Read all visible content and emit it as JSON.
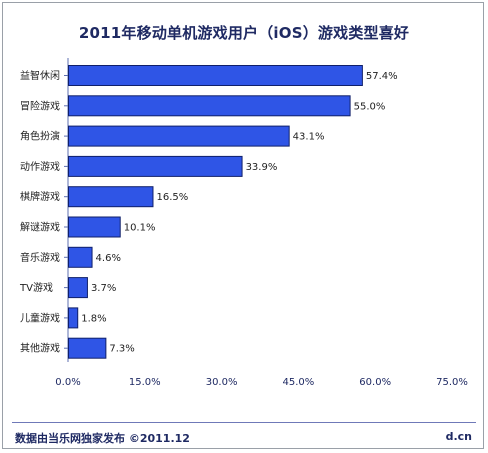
{
  "title": "2011年移动单机游戏用户（iOS）游戏类型喜好",
  "footer": {
    "source": "数据由当乐网独家发布  ©2011.12",
    "site": "d.cn"
  },
  "colors": {
    "bar_fill": "#2f55e6",
    "bar_stroke": "#10206a",
    "title": "#1f2a63",
    "axis": "#5d6fb0"
  },
  "chart_data": {
    "type": "bar",
    "orientation": "horizontal",
    "title": "2011年移动单机游戏用户（iOS）游戏类型喜好",
    "categories": [
      "益智休闲",
      "冒险游戏",
      "角色扮演",
      "动作游戏",
      "棋牌游戏",
      "解谜游戏",
      "音乐游戏",
      "TV游戏",
      "儿童游戏",
      "其他游戏"
    ],
    "values": [
      57.4,
      55.0,
      43.1,
      33.9,
      16.5,
      10.1,
      4.6,
      3.7,
      1.8,
      7.3
    ],
    "value_labels": [
      "57.4%",
      "55.0%",
      "43.1%",
      "33.9%",
      "16.5%",
      "10.1%",
      "4.6%",
      "3.7%",
      "1.8%",
      "7.3%"
    ],
    "xlim": [
      0,
      75
    ],
    "ticks": [
      0,
      15,
      30,
      45,
      60,
      75
    ],
    "tick_labels": [
      "0.0%",
      "15.0%",
      "30.0%",
      "45.0%",
      "60.0%",
      "75.0%"
    ],
    "xlabel": "",
    "ylabel": "",
    "grid": false,
    "legend": "none"
  }
}
